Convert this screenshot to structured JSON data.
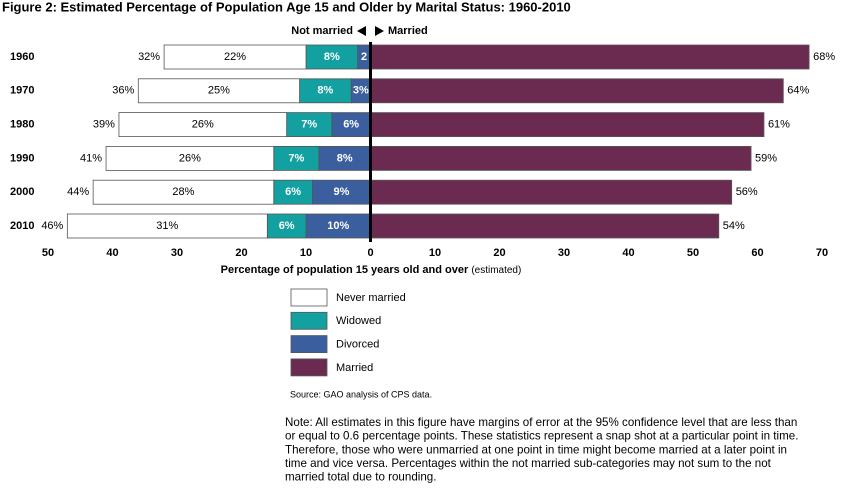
{
  "chart_data": {
    "type": "diverging-bar",
    "title": "Figure 2: Estimated Percentage of Population Age 15 and Older by Marital Status: 1960-2010",
    "direction_labels": [
      "Not married",
      "Married"
    ],
    "categories": [
      "1960",
      "1970",
      "1980",
      "1990",
      "2000",
      "2010"
    ],
    "series": [
      {
        "name": "Never married",
        "color": "#ffffff",
        "side": "left",
        "values": [
          22,
          25,
          26,
          26,
          28,
          31
        ],
        "value_labels": [
          "22%",
          "25%",
          "26%",
          "26%",
          "28%",
          "31%"
        ]
      },
      {
        "name": "Widowed",
        "color": "#13a0a0",
        "side": "left",
        "values": [
          8,
          8,
          7,
          7,
          6,
          6
        ],
        "value_labels": [
          "8%",
          "8%",
          "7%",
          "7%",
          "6%",
          "6%"
        ]
      },
      {
        "name": "Divorced",
        "color": "#3b5e9e",
        "side": "left",
        "values": [
          2,
          3,
          6,
          8,
          9,
          10
        ],
        "value_labels": [
          "2",
          "3%",
          "6%",
          "8%",
          "9%",
          "10%"
        ]
      },
      {
        "name": "Married",
        "color": "#6b2b50",
        "side": "right",
        "values": [
          68,
          64,
          61,
          59,
          56,
          54
        ],
        "value_labels": [
          "68%",
          "64%",
          "61%",
          "59%",
          "56%",
          "54%"
        ]
      }
    ],
    "totals": {
      "values": [
        32,
        36,
        39,
        41,
        44,
        46
      ],
      "value_labels": [
        "32%",
        "36%",
        "39%",
        "41%",
        "44%",
        "46%"
      ]
    },
    "xlim": [
      -50,
      70
    ],
    "xticks": [
      {
        "value": -50,
        "label": "50"
      },
      {
        "value": -40,
        "label": "40"
      },
      {
        "value": -30,
        "label": "30"
      },
      {
        "value": -20,
        "label": "20"
      },
      {
        "value": -10,
        "label": "10"
      },
      0,
      10,
      20,
      30,
      40,
      50,
      60,
      70
    ],
    "xlabel": "Percentage of population 15 years old and over",
    "xlabel_note": "(estimated)",
    "source": "Source: GAO analysis of CPS data.",
    "note": [
      "Note: All estimates in this figure have margins of error at the 95% confidence level that are less than",
      "or equal to 0.6 percentage points. These statistics represent a snap shot at a particular point in time.",
      "Therefore, those who were unmarried at one point in time might become married at a later point in",
      "time and vice versa. Percentages within the not married sub-categories may not sum to the not",
      "married total due to rounding."
    ]
  }
}
